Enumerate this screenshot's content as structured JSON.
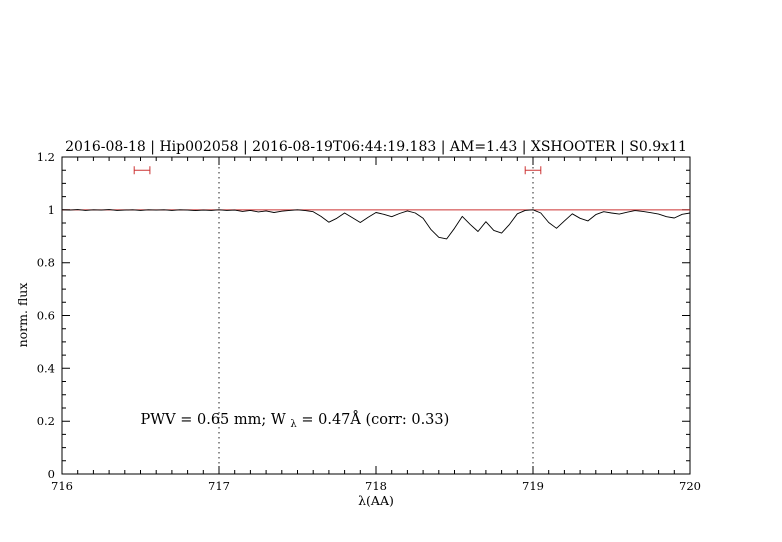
{
  "page": {
    "background": "#ffffff"
  },
  "chart_data": {
    "type": "line",
    "title": "2016-08-18 | Hip002058 | 2016-08-19T06:44:19.183 | AM=1.43 | XSHOOTER | S0.9x11",
    "title_color": "#0000cc",
    "xlabel": "λ(AA)",
    "ylabel": "norm. flux",
    "xlim": [
      716,
      720
    ],
    "ylim": [
      0,
      1.2
    ],
    "grid": "off",
    "x_ticks": {
      "major": [
        716,
        717,
        718,
        719,
        720
      ],
      "labels": [
        "716",
        "717",
        "718",
        "719",
        "720"
      ],
      "minor_step": 0.1
    },
    "y_ticks": {
      "major": [
        0,
        0.2,
        0.4,
        0.6,
        0.8,
        1,
        1.2
      ],
      "labels": [
        "0",
        "0.2",
        "0.4",
        "0.6",
        "0.8",
        "1",
        "1.2"
      ],
      "minor_step": 0.05
    },
    "vlines": {
      "positions": [
        717,
        719
      ],
      "style": "dotted",
      "color": "#222222"
    },
    "continuum_line": {
      "y": 1.0,
      "color": "#cc3333"
    },
    "region_markers": {
      "color": "#cc3333",
      "y": 1.15,
      "items": [
        {
          "x_center": 716.51,
          "half_width": 0.05
        },
        {
          "x_center": 719.0,
          "half_width": 0.05
        }
      ]
    },
    "annotation": {
      "pre": "PWV = 0.65 mm; W",
      "sub": "λ",
      "post": " = 0.47Å (corr: 0.33)",
      "x": 716.5,
      "y": 0.19,
      "color": "#0000cc"
    },
    "series": [
      {
        "name": "spectrum",
        "color": "#000000",
        "x": [
          716,
          716.05,
          716.1,
          716.15,
          716.2,
          716.25,
          716.3,
          716.35,
          716.4,
          716.45,
          716.5,
          716.55,
          716.6,
          716.65,
          716.7,
          716.75,
          716.8,
          716.85,
          716.9,
          716.95,
          717,
          717.05,
          717.1,
          717.15,
          717.2,
          717.25,
          717.3,
          717.35,
          717.4,
          717.45,
          717.5,
          717.55,
          717.6,
          717.65,
          717.7,
          717.75,
          717.8,
          717.85,
          717.9,
          717.95,
          718,
          718.05,
          718.1,
          718.15,
          718.2,
          718.25,
          718.3,
          718.35,
          718.4,
          718.45,
          718.5,
          718.55,
          718.6,
          718.65,
          718.7,
          718.75,
          718.8,
          718.85,
          718.9,
          718.95,
          719,
          719.05,
          719.1,
          719.15,
          719.2,
          719.25,
          719.3,
          719.35,
          719.4,
          719.45,
          719.5,
          719.55,
          719.6,
          719.65,
          719.7,
          719.75,
          719.8,
          719.85,
          719.9,
          719.95,
          720
        ],
        "y": [
          1.0,
          0.999,
          1.001,
          0.998,
          1.0,
          0.999,
          1.001,
          0.998,
          0.999,
          1.0,
          0.998,
          1.0,
          0.999,
          1.0,
          0.998,
          1.0,
          0.999,
          0.997,
          0.999,
          0.998,
          1.0,
          0.998,
          0.999,
          0.994,
          0.998,
          0.992,
          0.996,
          0.99,
          0.995,
          0.998,
          1.0,
          0.997,
          0.993,
          0.975,
          0.953,
          0.968,
          0.988,
          0.97,
          0.952,
          0.972,
          0.99,
          0.983,
          0.974,
          0.986,
          0.996,
          0.988,
          0.968,
          0.925,
          0.896,
          0.89,
          0.93,
          0.975,
          0.945,
          0.918,
          0.955,
          0.922,
          0.912,
          0.945,
          0.985,
          0.998,
          1.0,
          0.988,
          0.952,
          0.93,
          0.958,
          0.985,
          0.968,
          0.958,
          0.982,
          0.993,
          0.988,
          0.984,
          0.991,
          0.997,
          0.994,
          0.989,
          0.984,
          0.974,
          0.969,
          0.983,
          0.988
        ]
      }
    ]
  }
}
